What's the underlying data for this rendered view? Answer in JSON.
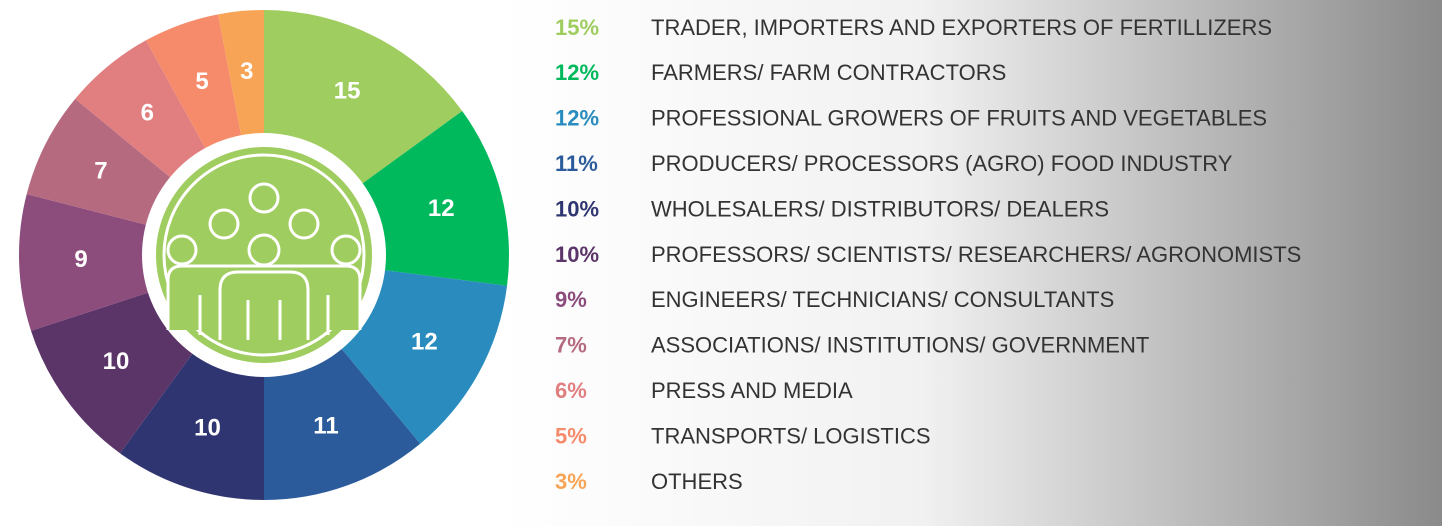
{
  "chart_data": {
    "type": "pie",
    "categories": [
      "TRADER, IMPORTERS AND EXPORTERS OF FERTILLIZERS",
      "FARMERS/ FARM CONTRACTORS",
      "PROFESSIONAL GROWERS OF FRUITS AND VEGETABLES",
      "PRODUCERS/ PROCESSORS (AGRO) FOOD INDUSTRY",
      "WHOLESALERS/ DISTRIBUTORS/ DEALERS",
      "PROFESSORS/ SCIENTISTS/ RESEARCHERS/ AGRONOMISTS",
      "ENGINEERS/ TECHNICIANS/ CONSULTANTS",
      "ASSOCIATIONS/ INSTITUTIONS/ GOVERNMENT",
      "PRESS AND MEDIA",
      "TRANSPORTS/ LOGISTICS",
      "OTHERS"
    ],
    "values": [
      15,
      12,
      12,
      11,
      10,
      10,
      9,
      7,
      6,
      5,
      3
    ],
    "value_labels": [
      "15%",
      "12%",
      "12%",
      "11%",
      "10%",
      "10%",
      "9%",
      "7%",
      "6%",
      "5%",
      "3%"
    ],
    "colors": [
      "#a0cd60",
      "#00b95c",
      "#2a8cbe",
      "#2b5b9b",
      "#2f3570",
      "#5b3468",
      "#8c4c7c",
      "#b56a80",
      "#e17e80",
      "#f58b6b",
      "#f8a456"
    ]
  }
}
